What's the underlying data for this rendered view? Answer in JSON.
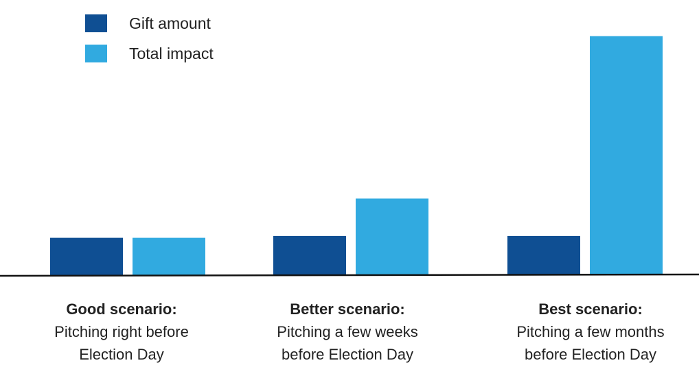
{
  "chart_data": {
    "type": "bar",
    "title": "",
    "xlabel": "",
    "ylabel": "",
    "categories": [
      {
        "title": "Good scenario:",
        "lines": [
          "Pitching right before",
          "Election Day"
        ]
      },
      {
        "title": "Better scenario:",
        "lines": [
          "Pitching a few weeks",
          "before Election Day"
        ]
      },
      {
        "title": "Best scenario:",
        "lines": [
          "Pitching a few months",
          "before Election Day"
        ]
      }
    ],
    "series": [
      {
        "name": "Gift amount",
        "color": "#0f4f93",
        "values": [
          1,
          1.05,
          1.05
        ]
      },
      {
        "name": "Total impact",
        "color": "#31aae0",
        "values": [
          1,
          2.05,
          6.4
        ]
      }
    ],
    "ylim": [
      0,
      7
    ],
    "grid": false,
    "legend_position": "top-left"
  }
}
